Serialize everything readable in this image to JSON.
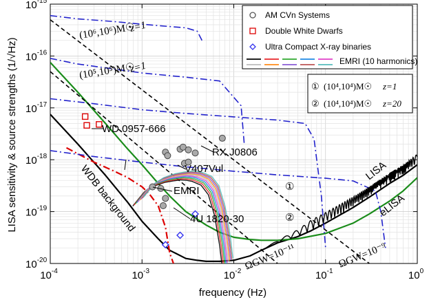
{
  "chart_data": {
    "type": "line",
    "title": "",
    "xlabel": "frequency (Hz)",
    "ylabel": "LISA sensitivity & source strengths (1/√Hz)",
    "xscale": "log",
    "yscale": "log",
    "xlim": [
      0.0001,
      1
    ],
    "ylim": [
      1e-20,
      1e-15
    ],
    "grid": true,
    "x_ticks": [
      {
        "value": 0.0001,
        "base": "10",
        "exp": "-4"
      },
      {
        "value": 0.001,
        "base": "10",
        "exp": "-3"
      },
      {
        "value": 0.01,
        "base": "10",
        "exp": "-2"
      },
      {
        "value": 0.1,
        "base": "10",
        "exp": "-1"
      },
      {
        "value": 1,
        "base": "10",
        "exp": "0"
      }
    ],
    "y_ticks": [
      {
        "value": 1e-20,
        "base": "10",
        "exp": "-20"
      },
      {
        "value": 1e-19,
        "base": "10",
        "exp": "-19"
      },
      {
        "value": 1e-18,
        "base": "10",
        "exp": "-18"
      },
      {
        "value": 1e-17,
        "base": "10",
        "exp": "-17"
      },
      {
        "value": 1e-16,
        "base": "10",
        "exp": "-16"
      },
      {
        "value": 1e-15,
        "base": "10",
        "exp": "-15"
      }
    ],
    "legend": {
      "position": "top-right",
      "entries": [
        {
          "label": "AM CVn Systems",
          "marker": "circle",
          "color": "#555555"
        },
        {
          "label": "Double White Dwarfs",
          "marker": "square",
          "color": "#dd0000"
        },
        {
          "label": "Ultra Compact X-ray binaries",
          "marker": "diamond",
          "color": "#3333ee"
        },
        {
          "label": "EMRI (10 harmonics)",
          "marker": "lines"
        }
      ],
      "emri_colors": [
        "#000000",
        "#e8242a",
        "#2ea82e",
        "#1e88e5",
        "#e040c8",
        "#bbbbbb",
        "#ff8c1a",
        "#8a5cd6",
        "#bb5555",
        "#55bbbb"
      ],
      "box2": [
        {
          "index": "①",
          "masses": "(10⁴,10⁴)M☉",
          "z": "z=1"
        },
        {
          "index": "②",
          "masses": "(10⁴,10⁴)M☉",
          "z": "z=20"
        }
      ]
    },
    "series": [
      {
        "name": "LISA",
        "color": "#000000",
        "style": "solid",
        "x": [
          0.0001,
          0.0002,
          0.0004,
          0.0007,
          0.001,
          0.0015,
          0.002,
          0.003,
          0.004,
          0.005,
          0.007,
          0.01,
          0.015,
          0.02,
          0.03,
          0.05,
          0.07,
          0.1,
          0.15,
          0.2,
          0.3,
          0.5,
          0.7,
          1
        ],
        "y": [
          7.5e-18,
          2e-18,
          5e-19,
          1.5e-19,
          6.5e-20,
          3e-20,
          1.8e-20,
          1.25e-20,
          1.15e-20,
          1.1e-20,
          1.1e-20,
          1.15e-20,
          1.4e-20,
          1.8e-20,
          2.5e-20,
          3.3e-20,
          4.3e-20,
          6e-20,
          9e-20,
          1.2e-19,
          1.9e-19,
          3.5e-19,
          5e-19,
          8e-19
        ]
      },
      {
        "name": "eLISA",
        "color": "#1a8c1a",
        "style": "solid",
        "x": [
          0.0001,
          0.0002,
          0.0004,
          0.0007,
          0.001,
          0.0015,
          0.002,
          0.003,
          0.005,
          0.007,
          0.01,
          0.015,
          0.02,
          0.03,
          0.05,
          0.1,
          0.2,
          0.3,
          0.5,
          0.7,
          1
        ],
        "y": [
          7.5e-17,
          2e-17,
          5e-18,
          1.6e-18,
          8e-19,
          3.5e-19,
          2e-19,
          1e-19,
          5.5e-20,
          4e-20,
          3.2e-20,
          2.9e-20,
          2.8e-20,
          2.8e-20,
          3e-20,
          3.8e-20,
          6e-20,
          9e-20,
          1.6e-19,
          2.5e-19,
          4.5e-19
        ]
      },
      {
        "name": "WDB background",
        "color": "#dd0000",
        "style": "dashdot",
        "x": [
          0.00015,
          0.0002,
          0.0003,
          0.0005,
          0.0007,
          0.001,
          0.0012,
          0.0015,
          0.0018,
          0.002,
          0.0022
        ],
        "y": [
          1.7e-18,
          1.3e-18,
          9e-19,
          6e-19,
          4.5e-19,
          3e-19,
          2.2e-19,
          1.3e-19,
          5e-20,
          1.6e-20,
          1e-20
        ]
      },
      {
        "name": "(10^6,10^6)M☉ z=1",
        "color": "#2222cc",
        "style": "dashdot",
        "x": [
          0.0001,
          0.0002,
          0.0005,
          0.001,
          0.002,
          0.003,
          0.004,
          0.0045
        ],
        "y": [
          6e-16,
          5.2e-16,
          4.6e-16,
          4.1e-16,
          3.7e-16,
          3.5e-16,
          3e-16,
          2e-16
        ]
      },
      {
        "name": "(10^5,10^5)M☉ z=1",
        "color": "#2222cc",
        "style": "dashdot",
        "x": [
          0.0001,
          0.0002,
          0.0005,
          0.001,
          0.003,
          0.007,
          0.012,
          0.013
        ],
        "y": [
          9e-17,
          7e-17,
          5.6e-17,
          4.7e-17,
          3.9e-17,
          3.3e-17,
          1.1e-17,
          2e-18
        ]
      },
      {
        "name": "① (10^4,10^4)M☉ z=1",
        "color": "#2222cc",
        "style": "dashdot",
        "x": [
          0.0001,
          0.0003,
          0.001,
          0.003,
          0.01,
          0.03,
          0.06,
          0.075,
          0.09,
          0.1
        ],
        "y": [
          1.5e-17,
          1.2e-17,
          9.2e-18,
          7.8e-18,
          6.7e-18,
          5.8e-18,
          5e-18,
          2.5e-18,
          2e-19,
          2e-20
        ]
      },
      {
        "name": "② (10^4,10^4)M☉ z=20",
        "color": "#2222cc",
        "style": "dashdot",
        "x": [
          0.0001,
          0.0003,
          0.001,
          0.003,
          0.01,
          0.03,
          0.1,
          0.2,
          0.35,
          0.4,
          0.45
        ],
        "y": [
          1.5e-18,
          1.15e-18,
          9e-19,
          7.3e-19,
          6e-19,
          5.1e-19,
          4.4e-19,
          3.9e-19,
          2.5e-19,
          1e-19,
          2e-20
        ]
      },
      {
        "name": "ΩGW=10^-11",
        "color": "#000000",
        "style": "dashed",
        "x": [
          0.0001,
          0.03
        ],
        "y": [
          5e-17,
          1e-20
        ]
      },
      {
        "name": "ΩGW=10^-9",
        "color": "#000000",
        "style": "dashed",
        "x": [
          0.0001,
          0.3
        ],
        "y": [
          5e-16,
          1e-20
        ]
      }
    ],
    "emri_harmonics": {
      "x": [
        0.0009,
        0.0012,
        0.0015,
        0.002,
        0.0025,
        0.003,
        0.0035,
        0.004,
        0.005,
        0.006,
        0.007,
        0.008,
        0.0085
      ],
      "y": [
        1.5e-19,
        2.8e-19,
        3.6e-19,
        4.3e-19,
        4.6e-19,
        4.8e-19,
        4.7e-19,
        4.5e-19,
        3.8e-19,
        2.5e-19,
        1e-19,
        2.5e-20,
        1e-20
      ],
      "count": 10
    },
    "points": {
      "am_cvn": [
        [
          0.0018,
          1.4e-18
        ],
        [
          0.0019,
          1.2e-18
        ],
        [
          0.0026,
          1.6e-18
        ],
        [
          0.0028,
          1.75e-18
        ],
        [
          0.0032,
          1.55e-18
        ],
        [
          0.0038,
          1.35e-18
        ],
        [
          0.0029,
          8.5e-19
        ],
        [
          0.0032,
          9e-19
        ],
        [
          0.0013,
          3e-19
        ],
        [
          0.0016,
          2.8e-19
        ],
        [
          0.0018,
          1.8e-19
        ],
        [
          0.0017,
          1.3e-19
        ],
        [
          0.0075,
          2.6e-18
        ]
      ],
      "double_wd": [
        [
          0.00024,
          6.8e-18
        ],
        [
          0.00025,
          4.6e-18
        ],
        [
          0.00034,
          4.8e-18
        ]
      ],
      "ucxb": [
        [
          0.0018,
          2.3e-20
        ],
        [
          0.0026,
          3.5e-20
        ],
        [
          0.0038,
          9e-20
        ]
      ]
    },
    "annotations": {
      "wd": "WD 0957-666",
      "rx": "RX J0806",
      "v407": "V407Vul",
      "emri": "EMRI",
      "wdb": "WDB background",
      "u4": "4U 1820-30",
      "lisa": "LISA",
      "elisa": "eLISA",
      "mass6": "(10⁶,10⁶)M☉",
      "mass5": "(10⁵,10⁵)M☉",
      "z1a": "z=1",
      "z1b": "z=1",
      "c1": "①",
      "c2": "②",
      "om11": "ΩGW=10⁻¹¹",
      "om9": "ΩGW=10⁻⁹"
    }
  }
}
